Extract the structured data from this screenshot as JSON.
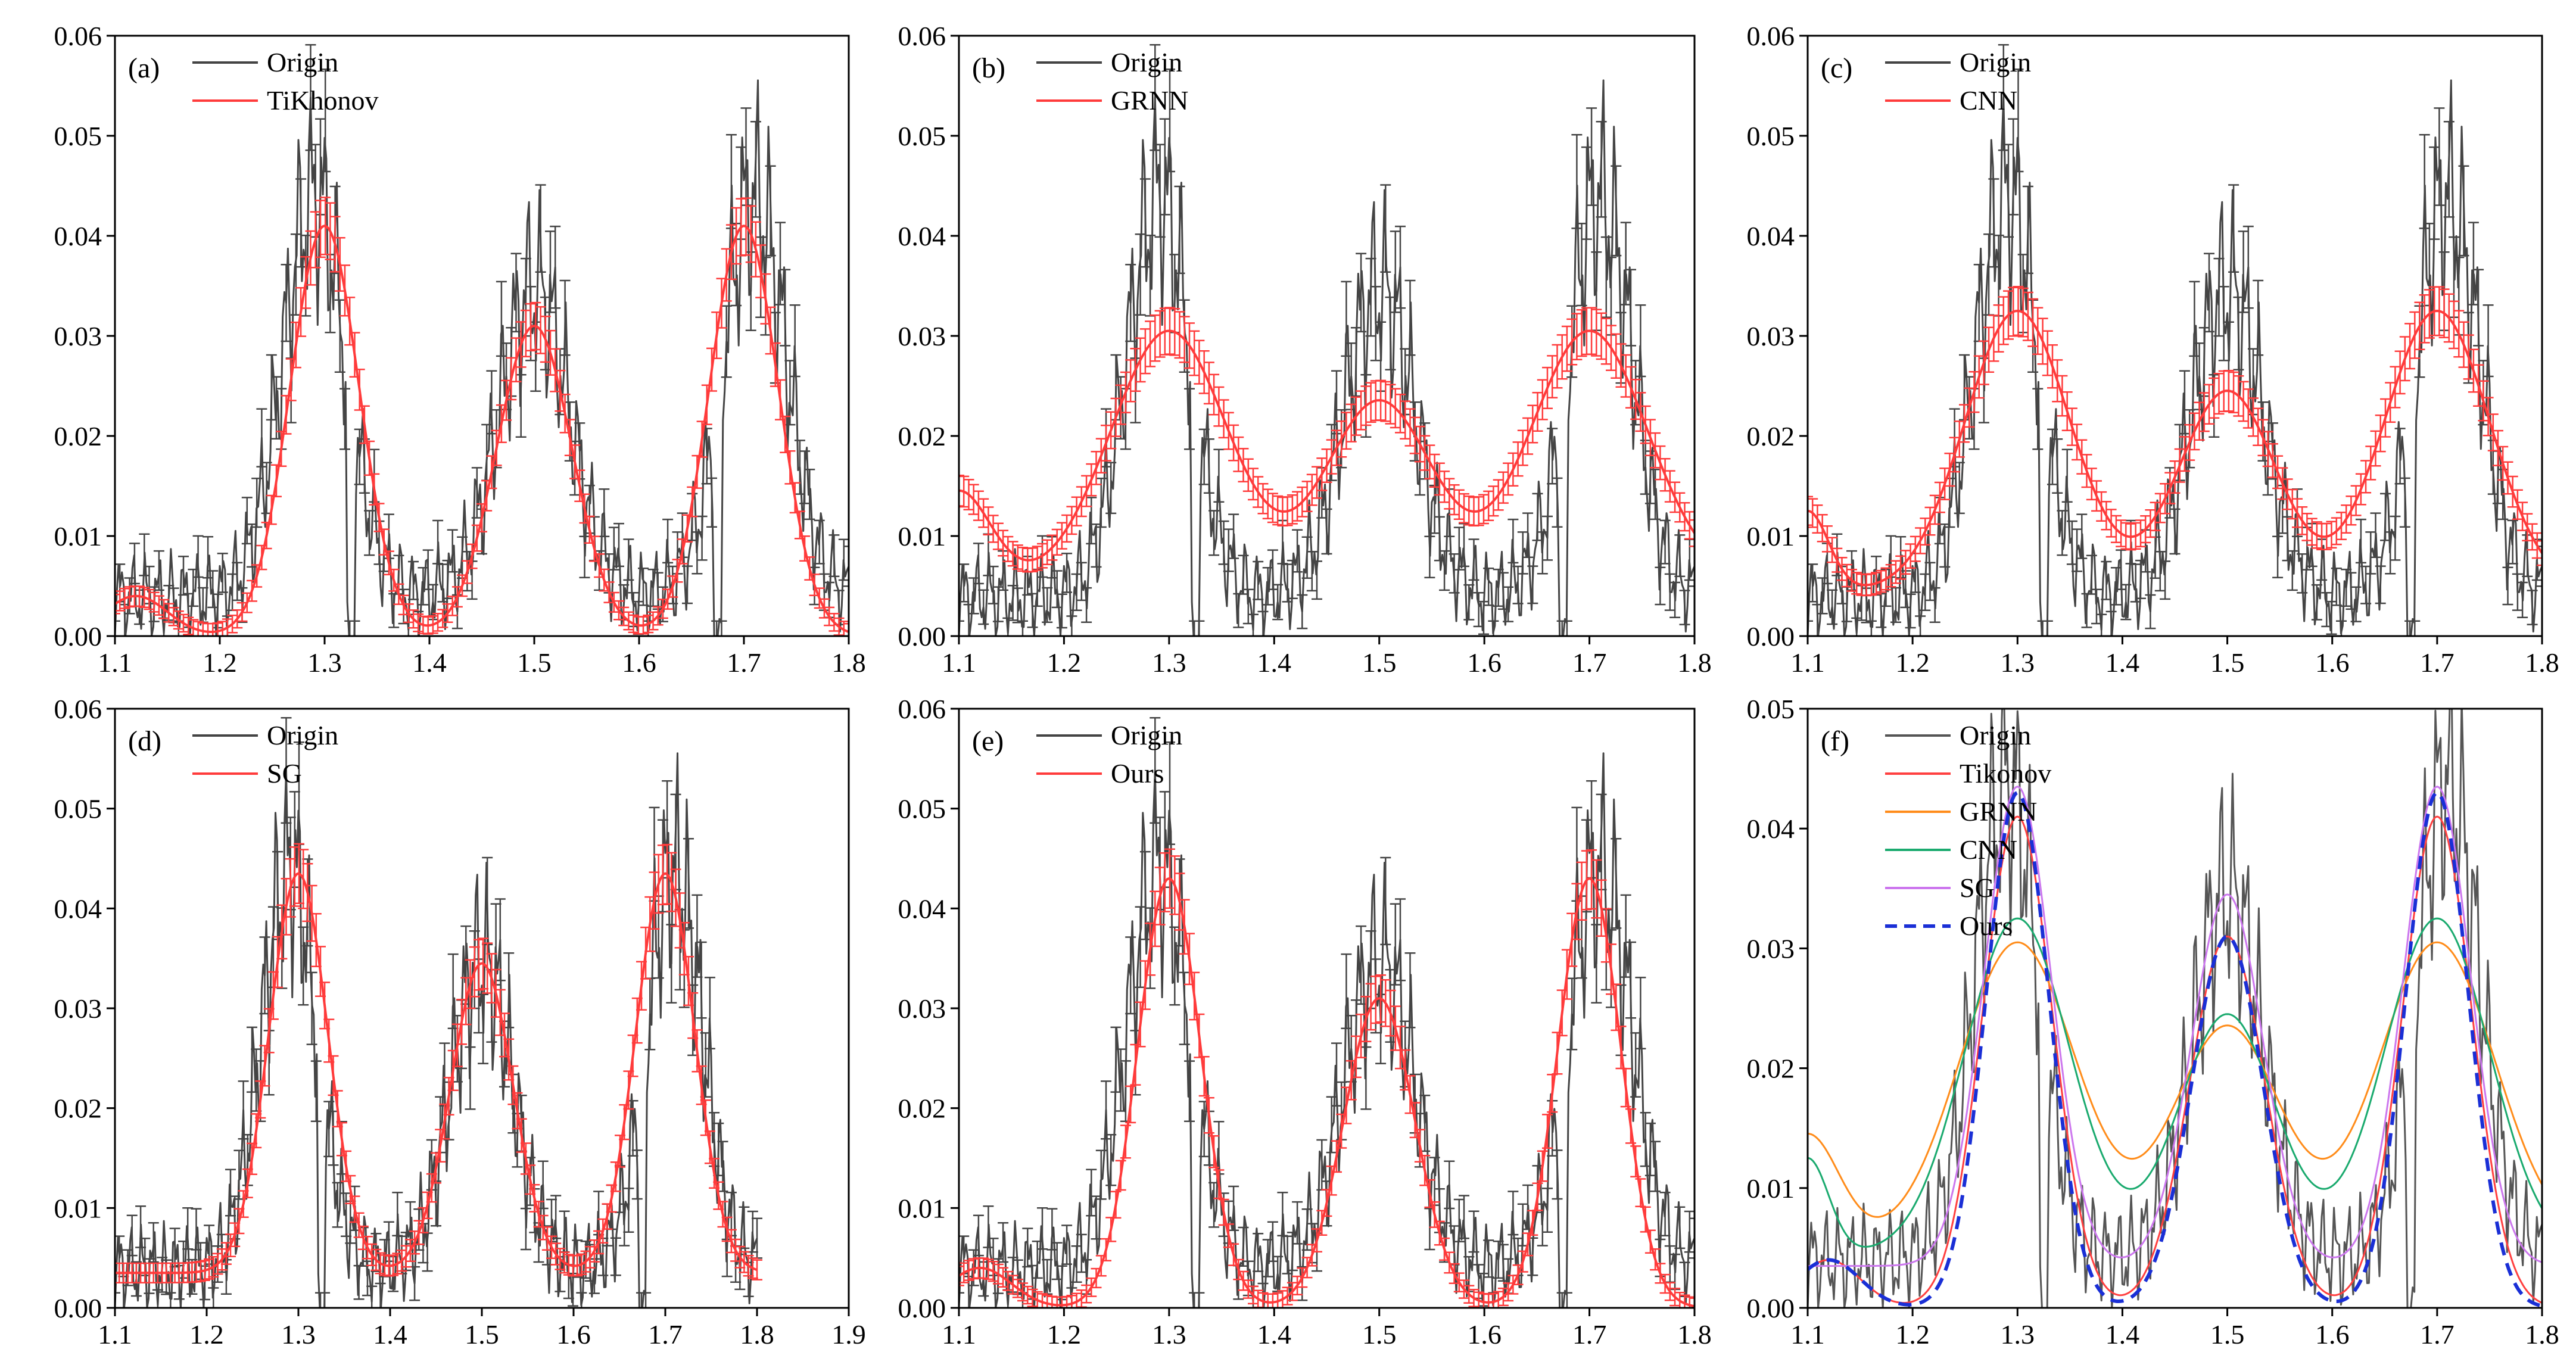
{
  "figure": {
    "panels": [
      "a",
      "b",
      "c",
      "d",
      "e",
      "f"
    ]
  },
  "chart_data": [
    {
      "id": "a",
      "type": "line",
      "panel_label": "(a)",
      "xlim": [
        1.1,
        1.8
      ],
      "ylim": [
        0,
        0.06
      ],
      "xticks": [
        "1.1",
        "1.2",
        "1.3",
        "1.4",
        "1.5",
        "1.6",
        "1.7",
        "1.8"
      ],
      "yticks": [
        "0.00",
        "0.01",
        "0.02",
        "0.03",
        "0.04",
        "0.05",
        "0.06"
      ],
      "legend_position": "top-left",
      "series": [
        {
          "name": "Origin",
          "method": "origin",
          "color": "#444444",
          "error_bars": true
        },
        {
          "name": "TiKhonov",
          "method": "tikhonov",
          "color": "#ff3b3b",
          "error_bars": true
        }
      ]
    },
    {
      "id": "b",
      "type": "line",
      "panel_label": "(b)",
      "xlim": [
        1.1,
        1.8
      ],
      "ylim": [
        0,
        0.06
      ],
      "xticks": [
        "1.1",
        "1.2",
        "1.3",
        "1.4",
        "1.5",
        "1.6",
        "1.7",
        "1.8"
      ],
      "yticks": [
        "0.00",
        "0.01",
        "0.02",
        "0.03",
        "0.04",
        "0.05",
        "0.06"
      ],
      "legend_position": "top-left",
      "series": [
        {
          "name": "Origin",
          "method": "origin",
          "color": "#444444",
          "error_bars": true
        },
        {
          "name": "GRNN",
          "method": "grnn",
          "color": "#ff3b3b",
          "error_bars": true
        }
      ]
    },
    {
      "id": "c",
      "type": "line",
      "panel_label": "(c)",
      "xlim": [
        1.1,
        1.8
      ],
      "ylim": [
        0,
        0.06
      ],
      "xticks": [
        "1.1",
        "1.2",
        "1.3",
        "1.4",
        "1.5",
        "1.6",
        "1.7",
        "1.8"
      ],
      "yticks": [
        "0.00",
        "0.01",
        "0.02",
        "0.03",
        "0.04",
        "0.05",
        "0.06"
      ],
      "legend_position": "top-left",
      "series": [
        {
          "name": "Origin",
          "method": "origin",
          "color": "#444444",
          "error_bars": true
        },
        {
          "name": "CNN",
          "method": "cnn",
          "color": "#ff3b3b",
          "error_bars": true
        }
      ]
    },
    {
      "id": "d",
      "type": "line",
      "panel_label": "(d)",
      "xlim": [
        1.1,
        1.9
      ],
      "ylim": [
        0,
        0.06
      ],
      "xticks": [
        "1.1",
        "1.2",
        "1.3",
        "1.4",
        "1.5",
        "1.6",
        "1.7",
        "1.8",
        "1.9"
      ],
      "yticks": [
        "0.00",
        "0.01",
        "0.02",
        "0.03",
        "0.04",
        "0.05",
        "0.06"
      ],
      "legend_position": "top-left",
      "series": [
        {
          "name": "Origin",
          "method": "origin",
          "color": "#444444",
          "error_bars": true
        },
        {
          "name": "SG",
          "method": "sg",
          "color": "#ff3b3b",
          "error_bars": true
        }
      ]
    },
    {
      "id": "e",
      "type": "line",
      "panel_label": "(e)",
      "xlim": [
        1.1,
        1.8
      ],
      "ylim": [
        0,
        0.06
      ],
      "xticks": [
        "1.1",
        "1.2",
        "1.3",
        "1.4",
        "1.5",
        "1.6",
        "1.7",
        "1.8"
      ],
      "yticks": [
        "0.00",
        "0.01",
        "0.02",
        "0.03",
        "0.04",
        "0.05",
        "0.06"
      ],
      "legend_position": "top-left",
      "series": [
        {
          "name": "Origin",
          "method": "origin",
          "color": "#444444",
          "error_bars": true
        },
        {
          "name": "Ours",
          "method": "ours",
          "color": "#ff3b3b",
          "error_bars": true
        }
      ]
    },
    {
      "id": "f",
      "type": "line",
      "panel_label": "(f)",
      "xlim": [
        1.1,
        1.8
      ],
      "ylim": [
        0,
        0.05
      ],
      "xticks": [
        "1.1",
        "1.2",
        "1.3",
        "1.4",
        "1.5",
        "1.6",
        "1.7",
        "1.8"
      ],
      "yticks": [
        "0.00",
        "0.01",
        "0.02",
        "0.03",
        "0.04",
        "0.05"
      ],
      "legend_position": "top-left",
      "series": [
        {
          "name": "Origin",
          "method": "origin",
          "color": "#555555",
          "error_bars": false
        },
        {
          "name": "Tikonov",
          "method": "tikhonov",
          "color": "#ff4040",
          "error_bars": false
        },
        {
          "name": "GRNN",
          "method": "grnn",
          "color": "#ff8c1a",
          "error_bars": false
        },
        {
          "name": "CNN",
          "method": "cnn",
          "color": "#1aaa6e",
          "error_bars": false
        },
        {
          "name": "SG",
          "method": "sg",
          "color": "#cc77ee",
          "error_bars": false
        },
        {
          "name": "Ours",
          "method": "ours",
          "color": "#1a2fd6",
          "error_bars": false,
          "dashed": true
        }
      ]
    }
  ]
}
